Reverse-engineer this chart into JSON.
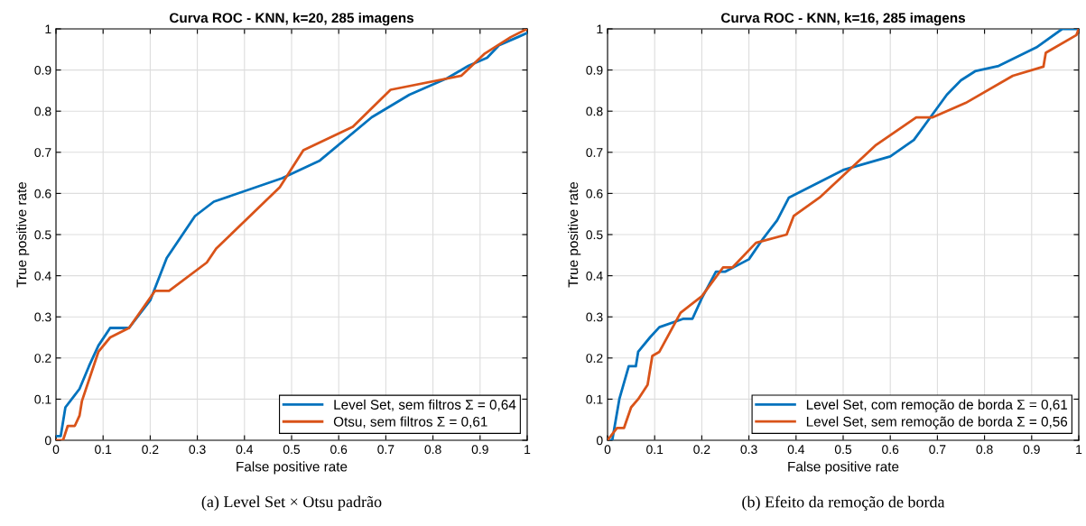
{
  "chart_data": [
    {
      "type": "line",
      "title": "Curva ROC - KNN, k=20, 285 imagens",
      "xlabel": "False positive rate",
      "ylabel": "True positive rate",
      "xlim": [
        0,
        1
      ],
      "ylim": [
        0,
        1
      ],
      "xticks": [
        0,
        0.1,
        0.2,
        0.3,
        0.4,
        0.5,
        0.6,
        0.7,
        0.8,
        0.9,
        1
      ],
      "yticks": [
        0,
        0.1,
        0.2,
        0.3,
        0.4,
        0.5,
        0.6,
        0.7,
        0.8,
        0.9,
        1
      ],
      "grid": true,
      "legend": "bottom right",
      "annotations": [
        "(a) Level Set × Otsu padrão"
      ],
      "series": [
        {
          "name": "Level Set, sem filtros Σ = 0,64",
          "color": "#0072bd",
          "x": [
            0,
            0.01,
            0.02,
            0.04,
            0.05,
            0.07,
            0.09,
            0.115,
            0.155,
            0.2,
            0.235,
            0.295,
            0.335,
            0.48,
            0.56,
            0.67,
            0.75,
            0.83,
            0.875,
            0.915,
            0.94,
            0.98,
            1
          ],
          "values": [
            0.01,
            0.01,
            0.08,
            0.11,
            0.125,
            0.18,
            0.23,
            0.273,
            0.273,
            0.34,
            0.443,
            0.545,
            0.58,
            0.637,
            0.68,
            0.785,
            0.84,
            0.88,
            0.91,
            0.93,
            0.96,
            0.98,
            0.99
          ]
        },
        {
          "name": "Otsu, sem filtros Σ = 0,61",
          "color": "#d95319",
          "x": [
            0,
            0.015,
            0.025,
            0.04,
            0.05,
            0.055,
            0.09,
            0.115,
            0.155,
            0.21,
            0.24,
            0.32,
            0.34,
            0.475,
            0.525,
            0.63,
            0.71,
            0.86,
            0.91,
            0.965,
            1
          ],
          "values": [
            0,
            0,
            0.035,
            0.035,
            0.06,
            0.095,
            0.215,
            0.25,
            0.273,
            0.363,
            0.363,
            0.432,
            0.466,
            0.615,
            0.705,
            0.762,
            0.852,
            0.886,
            0.94,
            0.98,
            1
          ]
        }
      ]
    },
    {
      "type": "line",
      "title": "Curva ROC - KNN, k=16, 285 imagens",
      "xlabel": "False positive rate",
      "ylabel": "True positive rate",
      "xlim": [
        0,
        1
      ],
      "ylim": [
        0,
        1
      ],
      "xticks": [
        0,
        0.1,
        0.2,
        0.3,
        0.4,
        0.5,
        0.6,
        0.7,
        0.8,
        0.9,
        1
      ],
      "yticks": [
        0,
        0.1,
        0.2,
        0.3,
        0.4,
        0.5,
        0.6,
        0.7,
        0.8,
        0.9,
        1
      ],
      "grid": true,
      "legend": "bottom right",
      "annotations": [
        "(b) Efeito da remoção de borda"
      ],
      "series": [
        {
          "name": "Level Set, com remoção de borda Σ = 0,61",
          "color": "#0072bd",
          "x": [
            0,
            0.01,
            0.025,
            0.045,
            0.06,
            0.065,
            0.09,
            0.11,
            0.16,
            0.18,
            0.2,
            0.23,
            0.25,
            0.3,
            0.33,
            0.36,
            0.385,
            0.5,
            0.6,
            0.65,
            0.72,
            0.75,
            0.78,
            0.83,
            0.91,
            0.965,
            1
          ],
          "values": [
            0,
            0,
            0.1,
            0.18,
            0.18,
            0.215,
            0.25,
            0.275,
            0.295,
            0.295,
            0.345,
            0.41,
            0.41,
            0.44,
            0.49,
            0.535,
            0.59,
            0.657,
            0.69,
            0.73,
            0.84,
            0.875,
            0.897,
            0.91,
            0.955,
            1,
            1
          ]
        },
        {
          "name": "Level Set, sem remoção de borda Σ = 0,56",
          "color": "#d95319",
          "x": [
            0,
            0.02,
            0.035,
            0.05,
            0.065,
            0.085,
            0.095,
            0.11,
            0.155,
            0.2,
            0.245,
            0.265,
            0.315,
            0.38,
            0.395,
            0.45,
            0.57,
            0.655,
            0.69,
            0.76,
            0.86,
            0.925,
            0.93,
            0.995,
            1
          ],
          "values": [
            0,
            0.03,
            0.03,
            0.08,
            0.1,
            0.135,
            0.205,
            0.215,
            0.31,
            0.35,
            0.42,
            0.42,
            0.48,
            0.5,
            0.545,
            0.59,
            0.718,
            0.785,
            0.785,
            0.82,
            0.886,
            0.908,
            0.942,
            0.985,
            1
          ]
        }
      ]
    }
  ]
}
